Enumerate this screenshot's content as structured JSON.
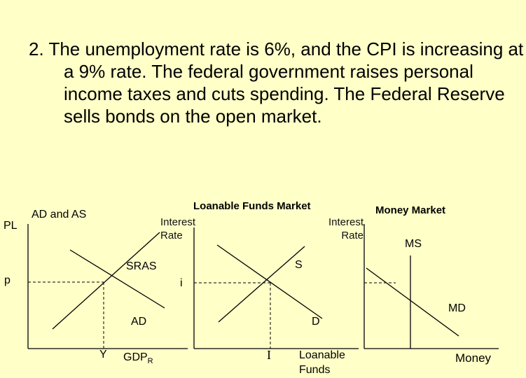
{
  "question": "2.  The unemployment rate is 6%, and the CPI is increasing at a 9% rate.  The federal government raises personal income taxes and cuts spending.  The Federal Reserve sells bonds on the open market.",
  "ad_as": {
    "title": "AD and AS",
    "y_axis": "PL",
    "price_level_label": "p",
    "curve_supply": "SRAS",
    "curve_demand": "AD",
    "output_label": "Y",
    "x_axis": "GDP",
    "x_axis_sub": "R"
  },
  "loanable_funds": {
    "title": "Loanable Funds Market",
    "y_axis_line1": "Interest",
    "y_axis_line2": "Rate",
    "rate_label": "i",
    "curve_supply": "S",
    "curve_demand": "D",
    "quantity_label": "I",
    "x_axis_line1": "Loanable",
    "x_axis_line2": "Funds"
  },
  "money_market": {
    "title": "Money Market",
    "y_axis_line1": "Interest",
    "y_axis_line2": "Rate",
    "curve_supply": "MS",
    "curve_demand": "MD",
    "x_axis": "Money"
  }
}
